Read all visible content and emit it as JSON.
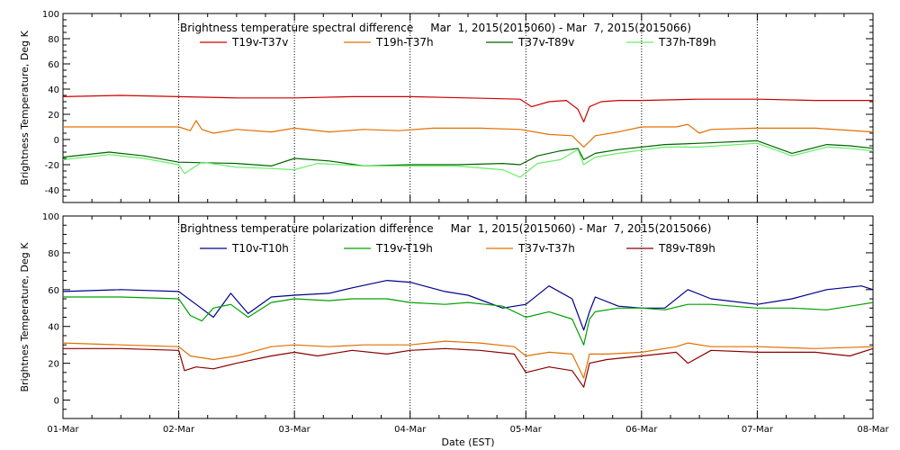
{
  "chart_data": [
    {
      "type": "line",
      "title": "Brightness temperature spectral difference     Mar  1, 2015(2015060) - Mar  7, 2015(2015066)",
      "ylabel": "Brightness Temperature, Deg K",
      "xlabel": "",
      "ylim": [
        -50,
        100
      ],
      "yticks": [
        -40,
        -20,
        0,
        20,
        40,
        60,
        80,
        100
      ],
      "xlim": [
        0,
        7
      ],
      "grid": "vertical dotted at day boundaries",
      "legend": "top, single row",
      "series": [
        {
          "name": "T19v-T37v",
          "color": "#cc0000",
          "x": [
            0,
            0.5,
            1,
            1.5,
            2,
            2.5,
            3,
            3.5,
            3.95,
            4.05,
            4.2,
            4.35,
            4.45,
            4.5,
            4.55,
            4.65,
            4.8,
            5,
            5.5,
            6,
            6.5,
            7
          ],
          "y": [
            34,
            35,
            34,
            33,
            33,
            34,
            34,
            33,
            32,
            26,
            30,
            31,
            24,
            14,
            26,
            30,
            31,
            31,
            32,
            32,
            31,
            31
          ]
        },
        {
          "name": "T19h-T37h",
          "color": "#e07000",
          "x": [
            0,
            0.5,
            1,
            1.1,
            1.15,
            1.2,
            1.3,
            1.5,
            1.8,
            2,
            2.3,
            2.6,
            2.9,
            3.2,
            3.6,
            3.95,
            4.2,
            4.4,
            4.5,
            4.6,
            4.8,
            5,
            5.3,
            5.4,
            5.5,
            5.6,
            6,
            6.5,
            7
          ],
          "y": [
            10,
            10,
            10,
            7,
            15,
            8,
            5,
            8,
            6,
            9,
            6,
            8,
            7,
            9,
            9,
            8,
            4,
            3,
            -6,
            3,
            6,
            10,
            10,
            12,
            5,
            8,
            9,
            9,
            6
          ]
        },
        {
          "name": "T37v-T89v",
          "color": "#006400",
          "x": [
            0,
            0.4,
            0.7,
            1,
            1.5,
            1.8,
            2,
            2.3,
            2.6,
            3,
            3.4,
            3.8,
            3.95,
            4.1,
            4.3,
            4.45,
            4.5,
            4.6,
            4.8,
            5.2,
            5.5,
            6,
            6.3,
            6.6,
            6.8,
            7
          ],
          "y": [
            -14,
            -10,
            -13,
            -18,
            -19,
            -21,
            -15,
            -17,
            -21,
            -20,
            -20,
            -19,
            -20,
            -13,
            -9,
            -7,
            -16,
            -11,
            -8,
            -4,
            -3,
            -1,
            -11,
            -4,
            -5,
            -7
          ]
        },
        {
          "name": "T37h-T89h",
          "color": "#66ee66",
          "x": [
            0,
            0.4,
            0.7,
            1,
            1.05,
            1.2,
            1.5,
            1.8,
            2,
            2.2,
            2.6,
            3,
            3.4,
            3.8,
            3.95,
            4.1,
            4.3,
            4.45,
            4.5,
            4.6,
            4.8,
            5.2,
            5.5,
            6,
            6.3,
            6.6,
            6.8,
            7
          ],
          "y": [
            -16,
            -12,
            -15,
            -20,
            -27,
            -18,
            -22,
            -23,
            -24,
            -19,
            -21,
            -21,
            -21,
            -24,
            -30,
            -19,
            -16,
            -8,
            -20,
            -14,
            -11,
            -6,
            -6,
            -3,
            -13,
            -6,
            -7,
            -9
          ]
        }
      ]
    },
    {
      "type": "line",
      "title": "Brightness temperature polarization difference     Mar  1, 2015(2015060) - Mar  7, 2015(2015066)",
      "ylabel": "Brightnes Temperature, Deg K",
      "xlabel": "Date (EST)",
      "ylim": [
        -10,
        100
      ],
      "yticks": [
        0,
        20,
        40,
        60,
        80,
        100
      ],
      "xlim": [
        0,
        7
      ],
      "xticklabels": [
        "01-Mar",
        "02-Mar",
        "03-Mar",
        "04-Mar",
        "05-Mar",
        "06-Mar",
        "07-Mar",
        "08-Mar"
      ],
      "grid": "vertical dotted at day boundaries",
      "legend": "top, single row",
      "series": [
        {
          "name": "T10v-T10h",
          "color": "#00008b",
          "x": [
            0,
            0.5,
            1,
            1.15,
            1.3,
            1.45,
            1.6,
            1.8,
            2,
            2.3,
            2.5,
            2.8,
            3,
            3.3,
            3.5,
            3.8,
            4,
            4.2,
            4.4,
            4.5,
            4.55,
            4.6,
            4.8,
            5,
            5.2,
            5.4,
            5.6,
            6,
            6.3,
            6.6,
            6.9,
            7
          ],
          "y": [
            59,
            60,
            59,
            52,
            45,
            58,
            47,
            56,
            57,
            58,
            61,
            65,
            64,
            59,
            57,
            50,
            52,
            62,
            55,
            38,
            48,
            56,
            51,
            50,
            50,
            60,
            55,
            52,
            55,
            60,
            62,
            60
          ]
        },
        {
          "name": "T19v-T19h",
          "color": "#00a000",
          "x": [
            0,
            0.5,
            1,
            1.1,
            1.2,
            1.3,
            1.45,
            1.6,
            1.8,
            2,
            2.3,
            2.5,
            2.8,
            3,
            3.3,
            3.5,
            3.8,
            4,
            4.2,
            4.4,
            4.5,
            4.55,
            4.6,
            4.8,
            5,
            5.2,
            5.4,
            5.6,
            6,
            6.3,
            6.6,
            6.9,
            7
          ],
          "y": [
            56,
            56,
            55,
            46,
            43,
            50,
            52,
            45,
            53,
            55,
            54,
            55,
            55,
            53,
            52,
            53,
            51,
            45,
            48,
            44,
            30,
            44,
            48,
            50,
            50,
            49,
            52,
            52,
            50,
            50,
            49,
            52,
            53
          ]
        },
        {
          "name": "T37v-T37h",
          "color": "#e07000",
          "x": [
            0,
            0.5,
            1,
            1.1,
            1.3,
            1.5,
            1.8,
            2,
            2.3,
            2.6,
            3,
            3.3,
            3.6,
            3.9,
            4,
            4.2,
            4.4,
            4.5,
            4.55,
            4.7,
            5,
            5.3,
            5.4,
            5.6,
            6,
            6.5,
            7
          ],
          "y": [
            31,
            30,
            29,
            24,
            22,
            24,
            29,
            30,
            29,
            30,
            30,
            32,
            31,
            29,
            24,
            26,
            25,
            12,
            25,
            25,
            26,
            29,
            31,
            29,
            29,
            28,
            29
          ]
        },
        {
          "name": "T89v-T89h",
          "color": "#8b0000",
          "x": [
            0,
            0.5,
            1,
            1.05,
            1.15,
            1.3,
            1.5,
            1.8,
            2,
            2.2,
            2.5,
            2.8,
            3,
            3.3,
            3.6,
            3.9,
            4,
            4.2,
            4.4,
            4.5,
            4.55,
            4.7,
            5,
            5.3,
            5.4,
            5.6,
            6,
            6.5,
            6.8,
            7
          ],
          "y": [
            28,
            28,
            27,
            16,
            18,
            17,
            20,
            24,
            26,
            24,
            27,
            25,
            27,
            28,
            27,
            25,
            15,
            18,
            16,
            7,
            20,
            22,
            24,
            26,
            20,
            27,
            26,
            26,
            24,
            28
          ]
        }
      ]
    }
  ]
}
